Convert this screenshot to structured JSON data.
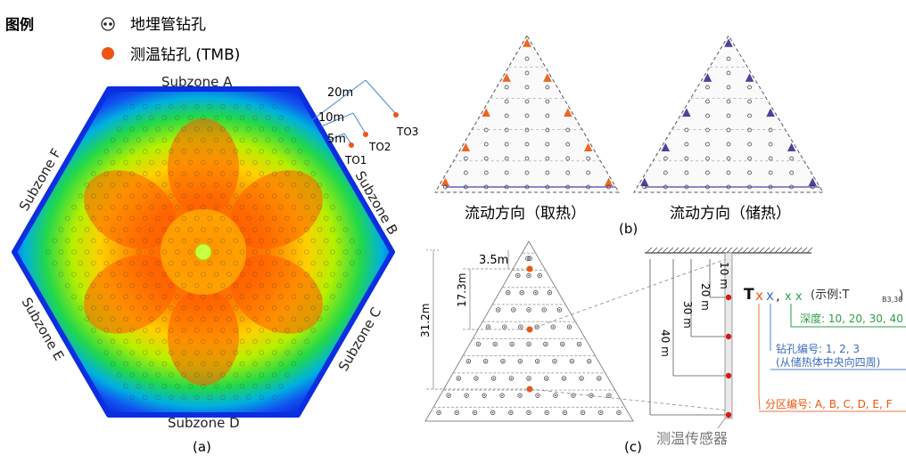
{
  "legend": {
    "title": "图例",
    "items": [
      {
        "label": "地埋管钻孔",
        "icon": "borehole-pair-icon"
      },
      {
        "label": "测温钻孔 (TMB)",
        "icon": "orange-dot-icon",
        "color": "#ee5511"
      }
    ]
  },
  "panel_a": {
    "caption": "(a)",
    "subzones": [
      "Subzone A",
      "Subzone B",
      "Subzone C",
      "Subzone D",
      "Subzone E",
      "Subzone F"
    ],
    "outer_probes": [
      "TO1",
      "TO2",
      "TO3"
    ],
    "distances": [
      "5m",
      "10m",
      "20m"
    ]
  },
  "panel_b": {
    "caption": "(b)",
    "left_label": "流动方向（取热）",
    "right_label": "流动方向（储热）"
  },
  "panel_c": {
    "caption": "(c)",
    "dims": [
      "3.5m",
      "17.3m",
      "31.2m"
    ],
    "depths": [
      "10 m",
      "20 m",
      "30 m",
      "40 m"
    ],
    "sensor_label": "测温传感器",
    "code": {
      "T": "T",
      "x1": "x",
      "x2": "x",
      "comma": ",",
      "x3": "x x",
      "example_prefix": "(示例:T",
      "example_sub": "B3,30",
      "example_suffix": ")"
    },
    "depth_note": "深度: 10, 20, 30, 40",
    "borehole_note_1": "钻孔编号: 1, 2, 3",
    "borehole_note_2": "(从储热体中央向四周)",
    "zone_note": "分区编号: A, B, C, D, E, F"
  },
  "colors": {
    "orange": "#ee5511",
    "green": "#2e9e44",
    "blue": "#3c6cc0",
    "flowRed": "#e06030",
    "flowPurple": "#6040a0",
    "sensorRed": "#d41919"
  }
}
